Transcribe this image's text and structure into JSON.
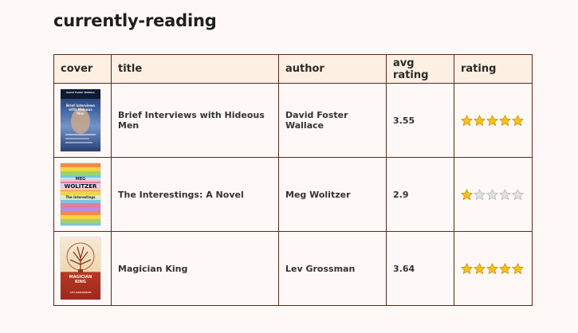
{
  "page": {
    "title": "currently-reading"
  },
  "table": {
    "headers": {
      "cover": "cover",
      "title": "title",
      "author": "author",
      "avg_rating": "avg rating",
      "rating": "rating"
    },
    "rows": [
      {
        "title": "Brief Interviews with Hideous Men",
        "author": "David Foster Wallace",
        "avg_rating": "3.55",
        "rating": 5,
        "cover": {
          "top_text": "David Foster Wallace",
          "main_text": "Brief Interviews with Hideous Men",
          "colors": [
            "#2a4b88",
            "#5b84c2",
            "#9fb7de"
          ]
        }
      },
      {
        "title": "The Interestings: A Novel",
        "author": "Meg Wolitzer",
        "avg_rating": "2.9",
        "rating": 1,
        "cover": {
          "top_text": "MEG",
          "main_text": "WOLITZER",
          "sub_text": "The Interestings",
          "colors": [
            "#f08c4a",
            "#f3d34a",
            "#9fd36b",
            "#7cc3e3",
            "#e57b9e"
          ]
        }
      },
      {
        "title": "Magician King",
        "author": "Lev Grossman",
        "avg_rating": "3.64",
        "rating": 5,
        "cover": {
          "main_text": "MAGICIAN KING",
          "sub_text": "LEV GROSSMAN",
          "colors": [
            "#f4e3c8",
            "#c85a2c",
            "#a0271f"
          ]
        }
      }
    ],
    "max_rating": 5
  },
  "colors": {
    "star_filled": "#f6c21a",
    "star_empty": "#e2e2e2",
    "border": "#5a2a20",
    "header_bg": "#fdf0e2"
  }
}
